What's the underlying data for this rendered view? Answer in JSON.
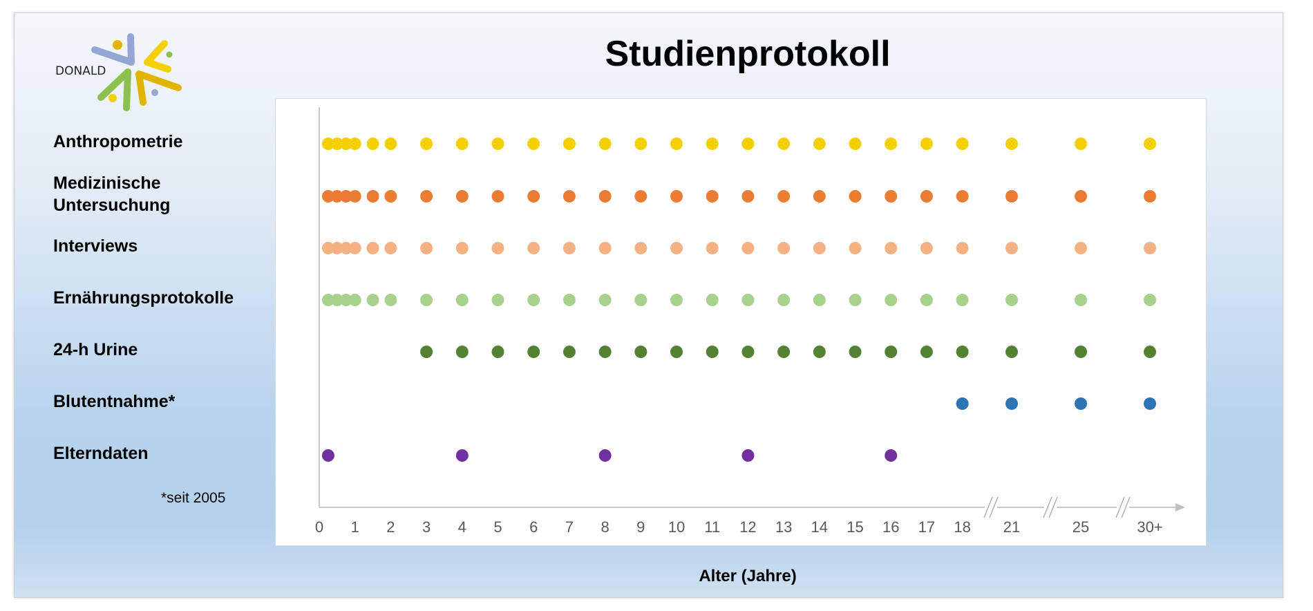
{
  "logo": {
    "text": "DONALD"
  },
  "title": "Studienprotokoll",
  "footnote": "*seit 2005",
  "chart_data": {
    "type": "scatter",
    "title": "Studienprotokoll",
    "xlabel": "Alter (Jahre)",
    "x_ticks": [
      "0",
      "1",
      "2",
      "3",
      "4",
      "5",
      "6",
      "7",
      "8",
      "9",
      "10",
      "11",
      "12",
      "13",
      "14",
      "15",
      "16",
      "17",
      "18",
      "21",
      "25",
      "30+"
    ],
    "x_tick_values": [
      0,
      1,
      2,
      3,
      4,
      5,
      6,
      7,
      8,
      9,
      10,
      11,
      12,
      13,
      14,
      15,
      16,
      17,
      18,
      21,
      25,
      30
    ],
    "axis_breaks": [
      [
        18,
        21
      ],
      [
        21,
        25
      ],
      [
        25,
        30
      ]
    ],
    "grid": false,
    "series": [
      {
        "name": "Anthropometrie",
        "label_lines": [
          "Anthropometrie"
        ],
        "color": "#F5D000",
        "x": [
          0.25,
          0.5,
          0.75,
          1,
          1.5,
          2,
          3,
          4,
          5,
          6,
          7,
          8,
          9,
          10,
          11,
          12,
          13,
          14,
          15,
          16,
          17,
          18,
          21,
          25,
          30
        ]
      },
      {
        "name": "Medizinische Untersuchung",
        "label_lines": [
          "Medizinische",
          "Untersuchung"
        ],
        "color": "#EB7D32",
        "x": [
          0.25,
          0.5,
          0.75,
          1,
          1.5,
          2,
          3,
          4,
          5,
          6,
          7,
          8,
          9,
          10,
          11,
          12,
          13,
          14,
          15,
          16,
          17,
          18,
          21,
          25,
          30
        ]
      },
      {
        "name": "Interviews",
        "label_lines": [
          "Interviews"
        ],
        "color": "#F4B183",
        "x": [
          0.25,
          0.5,
          0.75,
          1,
          1.5,
          2,
          3,
          4,
          5,
          6,
          7,
          8,
          9,
          10,
          11,
          12,
          13,
          14,
          15,
          16,
          17,
          18,
          21,
          25,
          30
        ]
      },
      {
        "name": "Ernährungsprotokolle",
        "label_lines": [
          "Ernährungsprotokolle"
        ],
        "color": "#A9D18E",
        "x": [
          0.25,
          0.5,
          0.75,
          1,
          1.5,
          2,
          3,
          4,
          5,
          6,
          7,
          8,
          9,
          10,
          11,
          12,
          13,
          14,
          15,
          16,
          17,
          18,
          21,
          25,
          30
        ]
      },
      {
        "name": "24-h Urine",
        "label_lines": [
          "24-h Urine"
        ],
        "color": "#548235",
        "x": [
          3,
          4,
          5,
          6,
          7,
          8,
          9,
          10,
          11,
          12,
          13,
          14,
          15,
          16,
          17,
          18,
          21,
          25,
          30
        ]
      },
      {
        "name": "Blutentnahme*",
        "label_lines": [
          "Blutentnahme*"
        ],
        "color": "#2E75B6",
        "x": [
          18,
          21,
          25,
          30
        ]
      },
      {
        "name": "Elterndaten",
        "label_lines": [
          "Elterndaten"
        ],
        "color": "#7030A0",
        "x": [
          0.25,
          4,
          8,
          12,
          16
        ]
      }
    ]
  }
}
